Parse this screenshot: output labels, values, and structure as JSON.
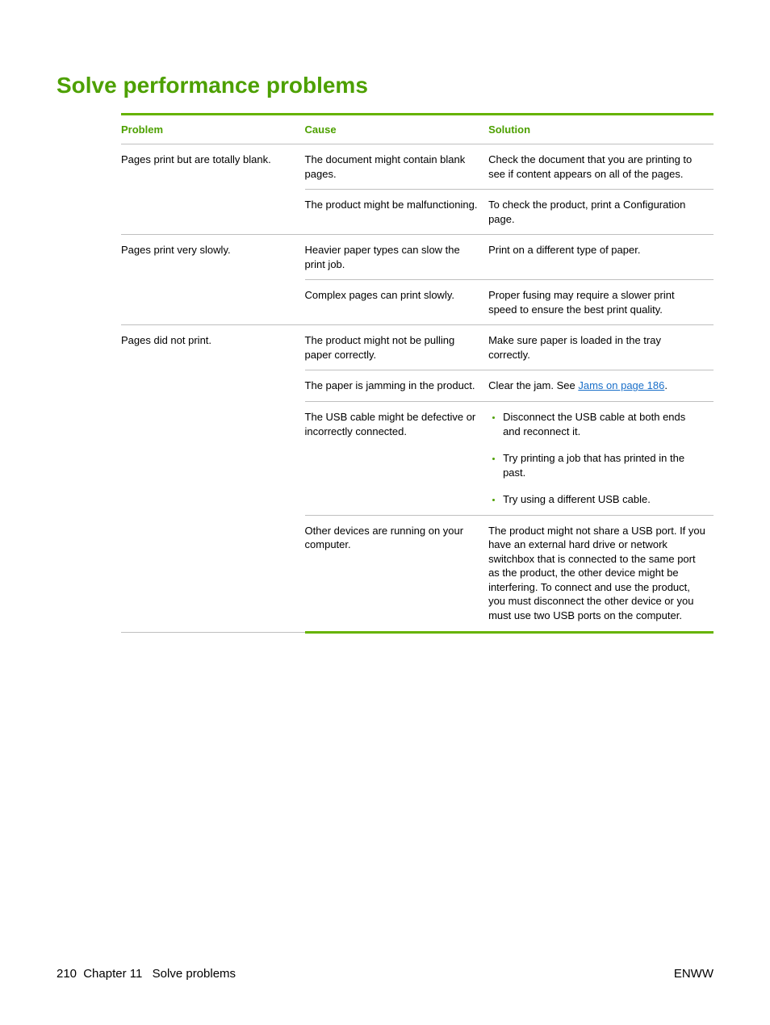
{
  "colors": {
    "accent": "#4da000",
    "rule": "#66b300",
    "divider": "#bfbfbf",
    "link": "#1a6fc9",
    "text": "#000000",
    "background": "#ffffff"
  },
  "typography": {
    "title_fontsize": 28,
    "header_fontsize": 13,
    "body_fontsize": 13,
    "footer_fontsize": 15,
    "font_family": "Arial"
  },
  "page_title": "Solve performance problems",
  "table": {
    "headers": {
      "problem": "Problem",
      "cause": "Cause",
      "solution": "Solution"
    },
    "column_widths_pct": [
      31,
      31,
      38
    ],
    "rows": [
      {
        "problem": "Pages print but are totally blank.",
        "cause": "The document might contain blank pages.",
        "solution": "Check the document that you are printing to see if content appears on all of the pages."
      },
      {
        "problem": "",
        "cause": "The product might be malfunctioning.",
        "solution": "To check the product, print a Configuration page."
      },
      {
        "problem": "Pages print very slowly.",
        "cause": "Heavier paper types can slow the print job.",
        "solution": "Print on a different type of paper."
      },
      {
        "problem": "",
        "cause": "Complex pages can print slowly.",
        "solution": "Proper fusing may require a slower print speed to ensure the best print quality."
      },
      {
        "problem": "Pages did not print.",
        "cause": "The product might not be pulling paper correctly.",
        "solution": "Make sure paper is loaded in the tray correctly."
      },
      {
        "problem": "",
        "cause": "The paper is jamming in the product.",
        "solution_prefix": "Clear the jam. See ",
        "solution_link": "Jams on page 186",
        "solution_suffix": "."
      },
      {
        "problem": "",
        "cause": "The USB cable might be defective or incorrectly connected.",
        "solution_list": [
          "Disconnect the USB cable at both ends and reconnect it.",
          "Try printing a job that has printed in the past.",
          "Try using a different USB cable."
        ]
      },
      {
        "problem": "",
        "cause": "Other devices are running on your computer.",
        "solution": "The product might not share a USB port. If you have an external hard drive or network switchbox that is connected to the same port as the product, the other device might be interfering. To connect and use the product, you must disconnect the other device or you must use two USB ports on the computer."
      }
    ]
  },
  "footer": {
    "page_number": "210",
    "chapter": "Chapter 11",
    "chapter_title": "Solve problems",
    "right": "ENWW"
  }
}
